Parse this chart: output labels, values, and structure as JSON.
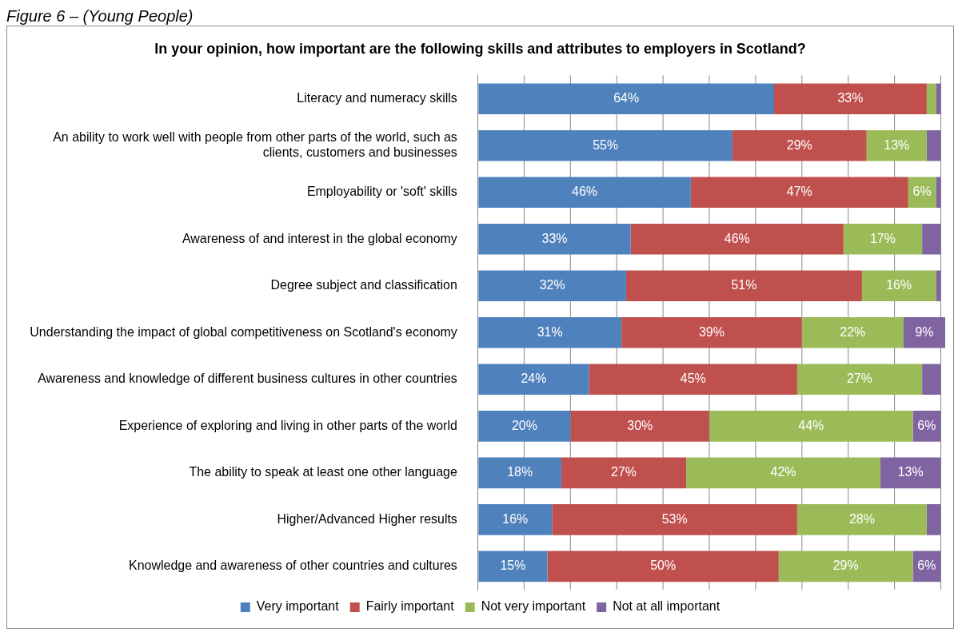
{
  "chart_data": {
    "type": "bar",
    "orientation": "horizontal",
    "stacked": true,
    "title": "In your opinion, how important are the following skills and attributes to employers in Scotland?",
    "annotations": [
      "Figure 6 – (Young People)"
    ],
    "categories": [
      "Literacy and numeracy skills",
      "An ability to work well with people from other parts of the world, such as clients, customers and businesses",
      "Employability or 'soft' skills",
      "Awareness of and interest in the global economy",
      "Degree subject and classification",
      "Understanding the impact of global competitiveness on Scotland's economy",
      "Awareness and knowledge of different business cultures in other countries",
      "Experience of exploring and living in other parts of the world",
      "The ability to speak at least one other language",
      "Higher/Advanced Higher results",
      "Knowledge and awareness of other countries and cultures"
    ],
    "series": [
      {
        "name": "Very important",
        "color": "#4f81bd",
        "values": [
          64,
          55,
          46,
          33,
          32,
          31,
          24,
          20,
          18,
          16,
          15
        ],
        "value_labels": [
          "64%",
          "55%",
          "46%",
          "33%",
          "32%",
          "31%",
          "24%",
          "20%",
          "18%",
          "16%",
          "15%"
        ]
      },
      {
        "name": "Fairly important",
        "color": "#c0504d",
        "values": [
          33,
          29,
          47,
          46,
          51,
          39,
          45,
          30,
          27,
          53,
          50
        ],
        "value_labels": [
          "33%",
          "29%",
          "47%",
          "46%",
          "51%",
          "39%",
          "45%",
          "30%",
          "27%",
          "53%",
          "50%"
        ]
      },
      {
        "name": "Not very important",
        "color": "#9bbb59",
        "values": [
          2,
          13,
          6,
          17,
          16,
          22,
          27,
          44,
          42,
          28,
          29
        ],
        "value_labels": [
          null,
          "13%",
          "6%",
          "17%",
          "16%",
          "22%",
          "27%",
          "44%",
          "42%",
          "28%",
          "29%"
        ]
      },
      {
        "name": "Not at all important",
        "color": "#8064a2",
        "values": [
          1,
          3,
          1,
          4,
          1,
          9,
          4,
          6,
          13,
          3,
          6
        ],
        "value_labels": [
          null,
          null,
          null,
          null,
          null,
          "9%",
          null,
          "6%",
          "13%",
          null,
          "6%"
        ]
      }
    ],
    "xlim": [
      0,
      101
    ],
    "xticks": [
      {
        "value": 0,
        "label": null
      },
      {
        "value": 10,
        "label": null
      },
      {
        "value": 20,
        "label": null
      },
      {
        "value": 30,
        "label": null
      },
      {
        "value": 40,
        "label": null
      },
      {
        "value": 50,
        "label": null
      },
      {
        "value": 60,
        "label": null
      },
      {
        "value": 70,
        "label": null
      },
      {
        "value": 80,
        "label": null
      },
      {
        "value": 90,
        "label": null
      },
      {
        "value": 100,
        "label": null
      }
    ],
    "tick_labels": "y",
    "grid": "x",
    "legend": "bottom"
  }
}
